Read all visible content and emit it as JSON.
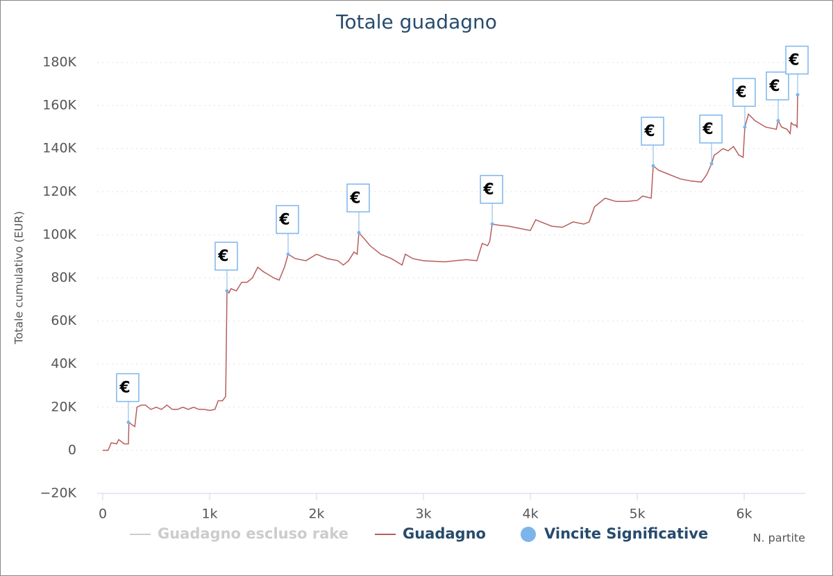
{
  "chart_data": {
    "type": "line",
    "title": "Totale guadagno",
    "y_label": "Totale cumulativo (EUR)",
    "x_label": "N. partite",
    "xlim": [
      -52,
      6571
    ],
    "ylim": [
      -20000,
      180000
    ],
    "xticks": [
      0,
      {
        "value": 1000,
        "label": "1k"
      },
      {
        "value": 2000,
        "label": "2k"
      },
      {
        "value": 3000,
        "label": "3k"
      },
      {
        "value": 4000,
        "label": "4k"
      },
      {
        "value": 5000,
        "label": "5k"
      },
      {
        "value": 6000,
        "label": "6k"
      }
    ],
    "yticks": [
      {
        "value": -20000,
        "label": "−20K"
      },
      0,
      {
        "value": 20000,
        "label": "20K"
      },
      {
        "value": 40000,
        "label": "40K"
      },
      {
        "value": 60000,
        "label": "60K"
      },
      {
        "value": 80000,
        "label": "80K"
      },
      {
        "value": 100000,
        "label": "100K"
      },
      {
        "value": 120000,
        "label": "120K"
      },
      {
        "value": 140000,
        "label": "140K"
      },
      {
        "value": 160000,
        "label": "160K"
      },
      {
        "value": 180000,
        "label": "180K"
      }
    ],
    "grid": true,
    "flag_label": "€",
    "series": [
      {
        "name": "Guadagno escluso rake",
        "color": "#cccccc",
        "visible": false
      },
      {
        "name": "Guadagno",
        "color": "#b85c5c",
        "x": [
          0,
          50,
          80,
          130,
          150,
          200,
          240,
          245,
          270,
          300,
          320,
          360,
          400,
          450,
          500,
          550,
          600,
          650,
          700,
          750,
          800,
          850,
          900,
          950,
          1000,
          1050,
          1080,
          1120,
          1150,
          1162,
          1180,
          1200,
          1250,
          1300,
          1350,
          1400,
          1450,
          1500,
          1600,
          1650,
          1700,
          1734,
          1800,
          1900,
          2000,
          2100,
          2200,
          2250,
          2300,
          2350,
          2380,
          2396,
          2450,
          2500,
          2600,
          2700,
          2800,
          2830,
          2900,
          3000,
          3200,
          3400,
          3500,
          3550,
          3600,
          3620,
          3643,
          3700,
          3800,
          3900,
          4000,
          4050,
          4100,
          4200,
          4300,
          4400,
          4500,
          4550,
          4600,
          4700,
          4800,
          4900,
          5000,
          5050,
          5130,
          5149,
          5200,
          5300,
          5400,
          5500,
          5600,
          5650,
          5695,
          5720,
          5750,
          5800,
          5850,
          5900,
          5950,
          5990,
          6006,
          6040,
          6100,
          6200,
          6300,
          6318,
          6350,
          6400,
          6430,
          6440,
          6460,
          6480,
          6495,
          6500
        ],
        "values": [
          0,
          0,
          3500,
          3000,
          5000,
          3000,
          3000,
          13000,
          12000,
          11000,
          20000,
          21000,
          21000,
          19000,
          20000,
          19000,
          21000,
          19000,
          19000,
          20000,
          19000,
          20000,
          19000,
          19000,
          18500,
          19000,
          23000,
          23000,
          25000,
          74000,
          73000,
          75000,
          74000,
          78000,
          78000,
          80000,
          85000,
          83000,
          80000,
          79000,
          85000,
          91000,
          89000,
          88000,
          91000,
          89000,
          88000,
          86000,
          88000,
          92000,
          91000,
          101000,
          98000,
          95000,
          91000,
          89000,
          86000,
          91000,
          89000,
          88000,
          87500,
          88500,
          88000,
          96000,
          95000,
          97000,
          105000,
          104500,
          104000,
          103000,
          102000,
          107000,
          106000,
          104000,
          103500,
          106000,
          105000,
          106000,
          113000,
          117000,
          115500,
          115500,
          116000,
          118000,
          117000,
          132000,
          130000,
          128000,
          126000,
          125000,
          124500,
          128000,
          133000,
          137000,
          138000,
          140000,
          139000,
          141000,
          137000,
          136000,
          150000,
          156000,
          153000,
          150000,
          149000,
          153000,
          150000,
          149000,
          147000,
          152000,
          151000,
          151000,
          150000,
          165000
        ]
      },
      {
        "name": "Vincite Significative",
        "color": "#7cb5ec",
        "type": "scatter",
        "x": [
          240,
          1162,
          1734,
          2396,
          3643,
          5149,
          5695,
          6006,
          6318,
          6500
        ],
        "values": [
          13000,
          74000,
          91000,
          101000,
          105000,
          132000,
          133000,
          150000,
          153000,
          165000
        ]
      }
    ]
  }
}
